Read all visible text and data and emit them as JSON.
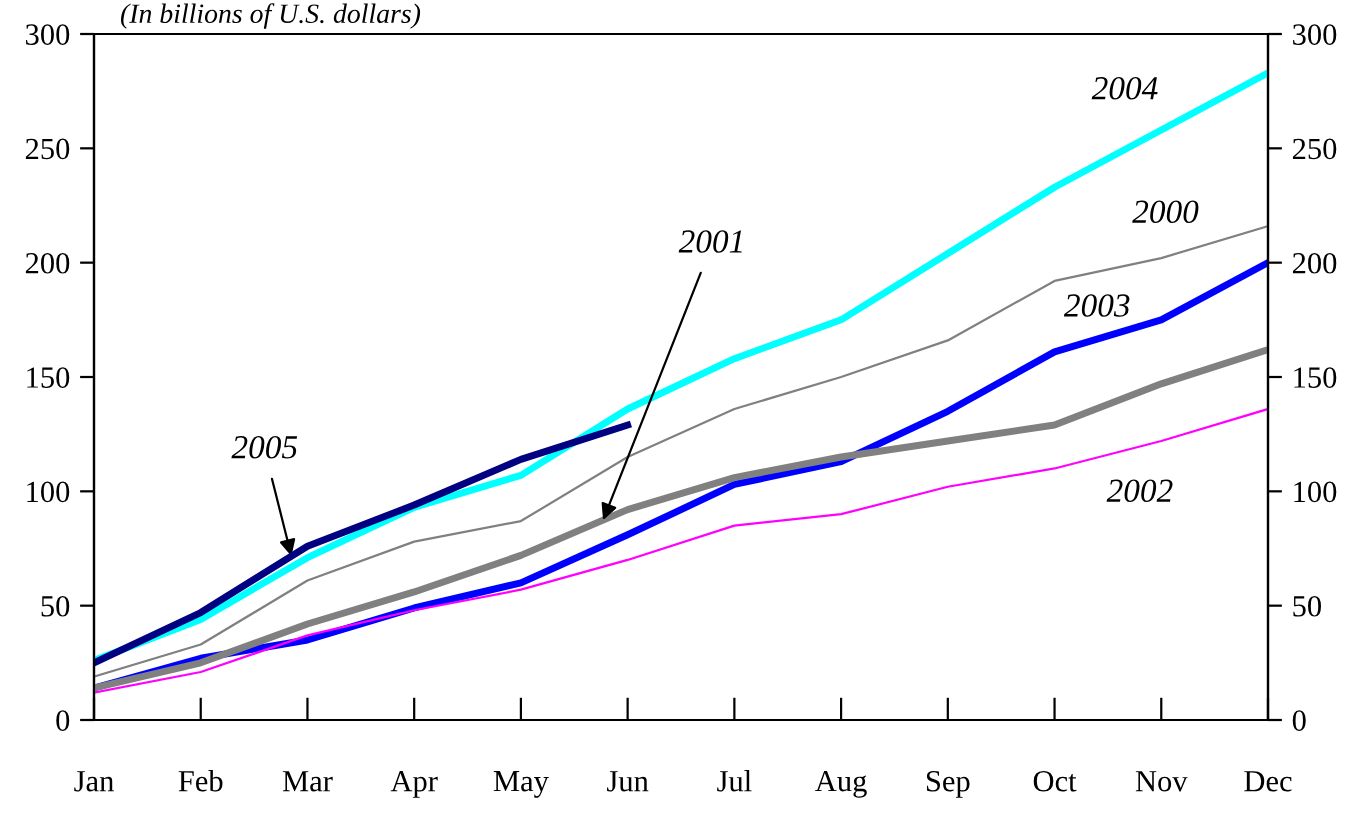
{
  "chart_data": {
    "type": "line",
    "subtitle": "(In billions of U.S. dollars)",
    "categories": [
      "Jan",
      "Feb",
      "Mar",
      "Apr",
      "May",
      "Jun",
      "Jul",
      "Aug",
      "Sep",
      "Oct",
      "Nov",
      "Dec"
    ],
    "series": [
      {
        "name": "2004",
        "color": "#00ffff",
        "values": [
          26,
          44,
          71,
          93,
          107,
          136,
          158,
          175,
          204,
          233,
          258,
          283
        ]
      },
      {
        "name": "2000",
        "color": "#808080",
        "values": [
          19,
          33,
          61,
          78,
          87,
          115,
          136,
          150,
          166,
          192,
          202,
          216
        ]
      },
      {
        "name": "2003",
        "color": "#0000ff",
        "values": [
          14,
          27,
          35,
          49,
          60,
          81,
          103,
          113,
          135,
          161,
          175,
          200
        ]
      },
      {
        "name": "2001",
        "color": "#808080",
        "values": [
          14,
          25,
          42,
          56,
          72,
          92,
          106,
          115,
          122,
          129,
          147,
          162
        ]
      },
      {
        "name": "2002",
        "color": "#ff00ff",
        "values": [
          12,
          21,
          37,
          48,
          57,
          70,
          85,
          90,
          102,
          110,
          122,
          136
        ]
      },
      {
        "name": "2005",
        "color": "#000080",
        "values": [
          25,
          47,
          76,
          94,
          114,
          129,
          null,
          null,
          null,
          null,
          null,
          null
        ]
      }
    ],
    "ylim": [
      0,
      300
    ],
    "yticks": [
      0,
      50,
      100,
      150,
      200,
      250,
      300
    ],
    "y2lim": [
      0,
      300
    ],
    "y2ticks": [
      0,
      50,
      100,
      150,
      200,
      250,
      300
    ],
    "grid": false,
    "legend": false,
    "marker": "none",
    "line_style": "solid"
  }
}
